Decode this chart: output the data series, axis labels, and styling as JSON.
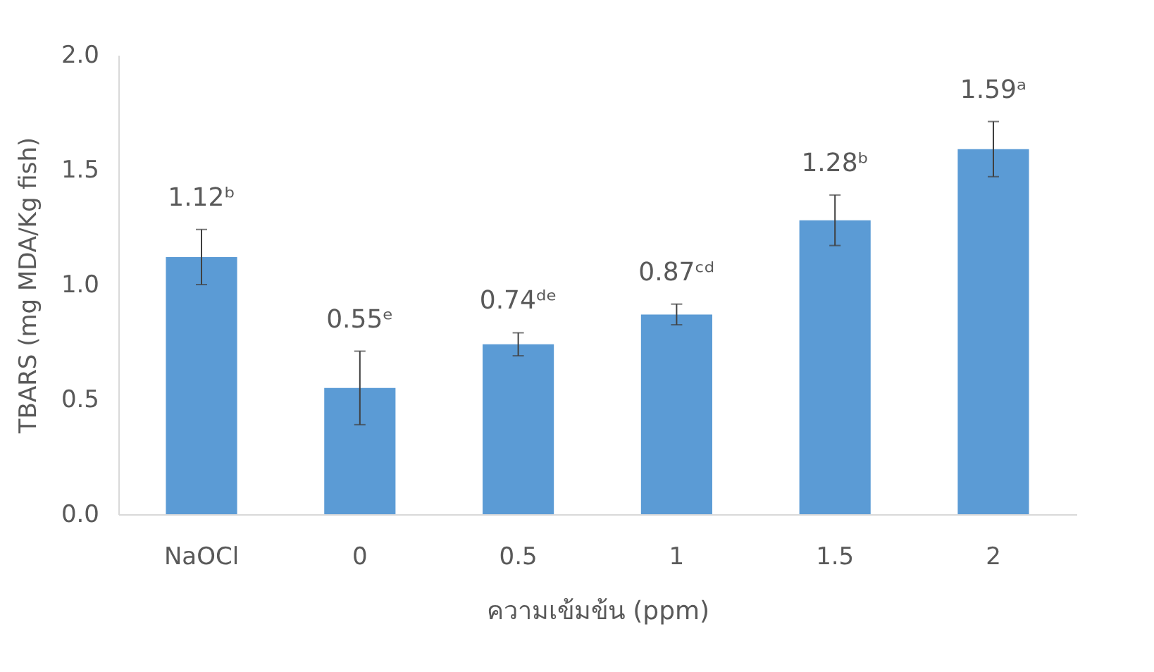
{
  "chart_data": {
    "type": "bar",
    "xlabel": "ความเข้มข้น (ppm)",
    "ylabel": "TBARS (mg MDA/Kg fish)",
    "categories": [
      "NaOCl",
      "0",
      "0.5",
      "1",
      "1.5",
      "2"
    ],
    "values": [
      1.12,
      0.55,
      0.74,
      0.87,
      1.28,
      1.59
    ],
    "errors": [
      0.12,
      0.16,
      0.05,
      0.045,
      0.11,
      0.12
    ],
    "value_labels": [
      "1.12ᵇ",
      "0.55ᵉ",
      "0.74ᵈᵉ",
      "0.87ᶜᵈ",
      "1.28ᵇ",
      "1.59ᵃ"
    ],
    "color": "#5b9bd5",
    "ylim": [
      0,
      2
    ],
    "yticks": [
      {
        "value": 0,
        "label": "0.0"
      },
      0.5,
      {
        "value": 1,
        "label": "1.0"
      },
      1.5,
      {
        "value": 2,
        "label": "2.0"
      }
    ],
    "grid": false
  }
}
